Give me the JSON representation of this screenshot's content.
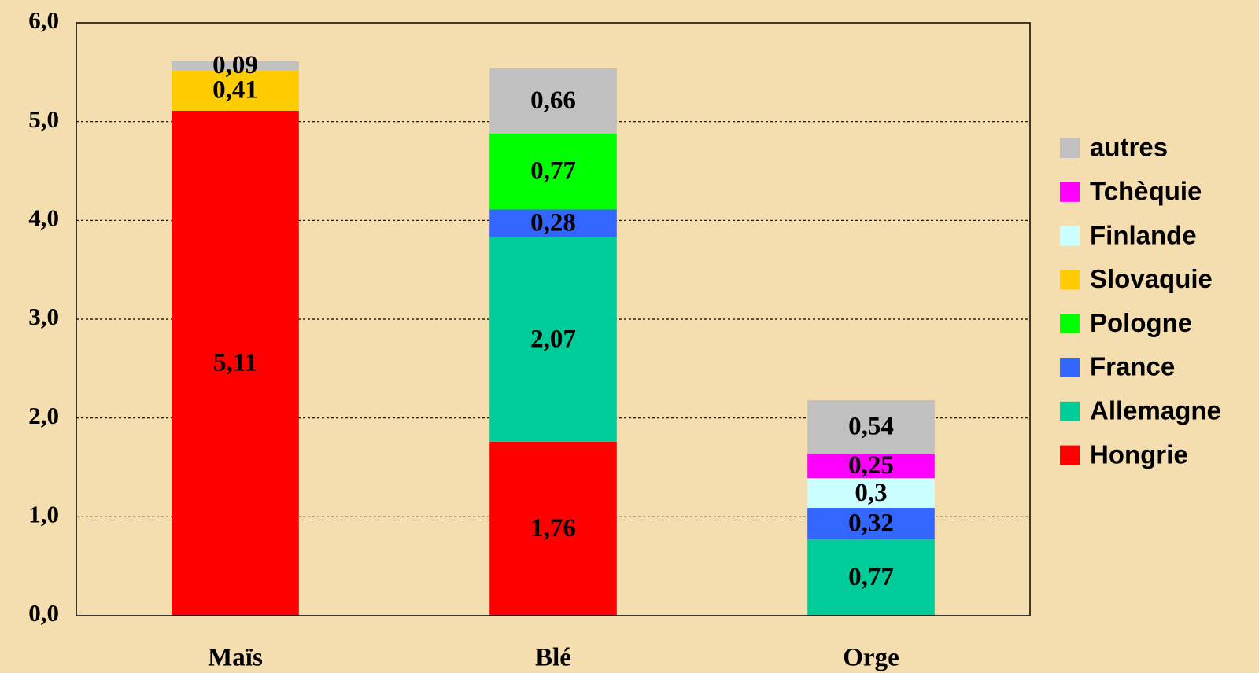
{
  "chart_data": {
    "type": "bar",
    "stacked": true,
    "categories": [
      "Maïs",
      "Blé",
      "Orge"
    ],
    "series": [
      {
        "name": "Hongrie",
        "color": "#ff0000",
        "values": [
          5.11,
          1.76,
          null
        ],
        "value_labels": [
          "5,11",
          "1,76",
          null
        ]
      },
      {
        "name": "Allemagne",
        "color": "#00cc99",
        "values": [
          null,
          2.07,
          0.77
        ],
        "value_labels": [
          null,
          "2,07",
          "0,77"
        ]
      },
      {
        "name": "France",
        "color": "#3366ff",
        "values": [
          null,
          0.28,
          0.32
        ],
        "value_labels": [
          null,
          "0,28",
          "0,32"
        ]
      },
      {
        "name": "Pologne",
        "color": "#00ff00",
        "values": [
          null,
          0.77,
          null
        ],
        "value_labels": [
          null,
          "0,77",
          null
        ]
      },
      {
        "name": "Slovaquie",
        "color": "#ffcc00",
        "values": [
          0.41,
          null,
          null
        ],
        "value_labels": [
          "0,41",
          null,
          null
        ]
      },
      {
        "name": "Finlande",
        "color": "#ccffff",
        "values": [
          null,
          null,
          0.3
        ],
        "value_labels": [
          null,
          null,
          "0,3"
        ]
      },
      {
        "name": "Tchèquie",
        "color": "#ff00ff",
        "values": [
          null,
          null,
          0.25
        ],
        "value_labels": [
          null,
          null,
          "0,25"
        ]
      },
      {
        "name": "autres",
        "color": "#c0c0c0",
        "values": [
          0.09,
          0.66,
          0.54
        ],
        "value_labels": [
          "0,09",
          "0,66",
          "0,54"
        ]
      }
    ],
    "ylim": [
      0,
      6
    ],
    "yticks": [
      {
        "value": 0,
        "label": "0,0"
      },
      {
        "value": 1,
        "label": "1,0"
      },
      {
        "value": 2,
        "label": "2,0"
      },
      {
        "value": 3,
        "label": "3,0"
      },
      {
        "value": 4,
        "label": "4,0"
      },
      {
        "value": 5,
        "label": "5,0"
      },
      {
        "value": 6,
        "label": "6,0"
      }
    ],
    "grid": true,
    "legend": "right"
  }
}
